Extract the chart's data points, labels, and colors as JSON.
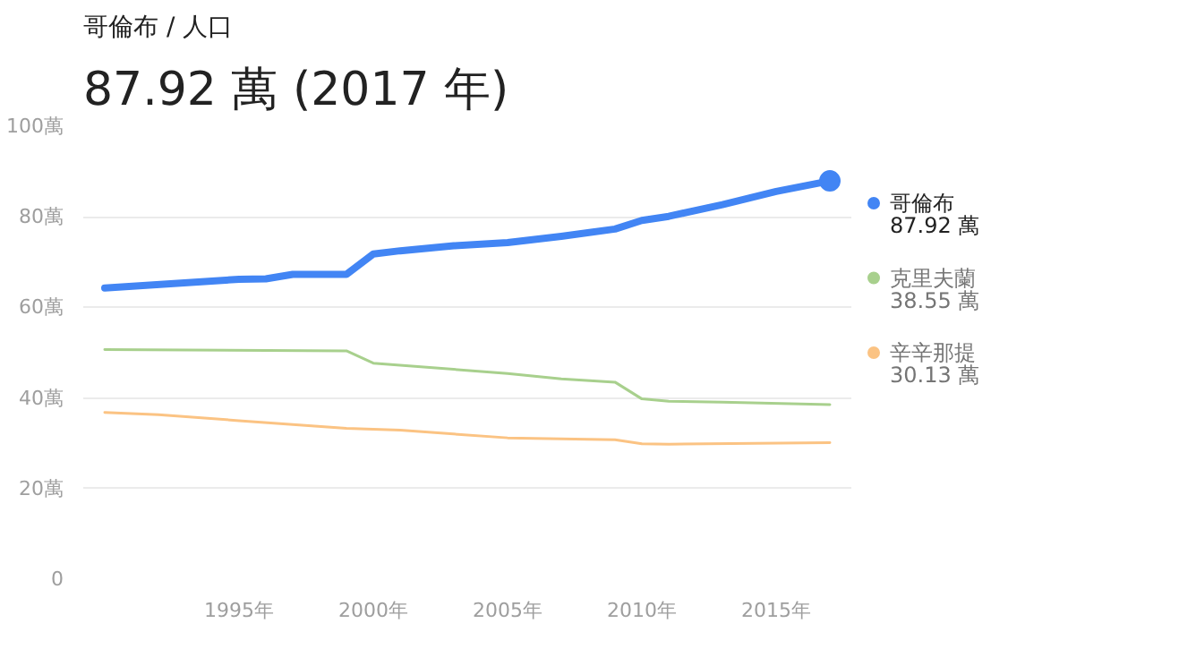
{
  "chart_data": {
    "type": "line",
    "title": "哥倫布 / 人口",
    "subtitle": "87.92 萬 (2017 年)",
    "xlim": [
      1989.2,
      2017.8
    ],
    "ylim": [
      0,
      100
    ],
    "xticks": [
      {
        "value": 1995,
        "label": "1995年"
      },
      {
        "value": 2000,
        "label": "2000年"
      },
      {
        "value": 2005,
        "label": "2005年"
      },
      {
        "value": 2010,
        "label": "2010年"
      },
      {
        "value": 2015,
        "label": "2015年"
      }
    ],
    "yticks": [
      0,
      {
        "value": 20,
        "label": "20萬"
      },
      {
        "value": 40,
        "label": "40萬"
      },
      {
        "value": 60,
        "label": "60萬"
      },
      {
        "value": 80,
        "label": "80萬"
      },
      {
        "value": 100,
        "label": "100萬"
      }
    ],
    "grid": "y",
    "legend": "right",
    "annotations": [
      "87.92 萬",
      "38.55 萬",
      "30.13 萬"
    ],
    "series": [
      {
        "name": "哥倫布",
        "color": "#4285f4",
        "x": [
          1990,
          1995,
          1996,
          1997,
          1999,
          2000,
          2001,
          2003,
          2005,
          2007,
          2009,
          2010,
          2011,
          2013,
          2015,
          2017
        ],
        "values": [
          64.3,
          66.2,
          66.3,
          67.3,
          67.3,
          71.8,
          72.5,
          73.6,
          74.3,
          75.7,
          77.3,
          79.2,
          80.1,
          82.7,
          85.6,
          87.92
        ]
      },
      {
        "name": "克里夫蘭",
        "color": "#a8d08d",
        "x": [
          1990,
          1999,
          2000,
          2005,
          2007,
          2009,
          2010,
          2011,
          2013,
          2017
        ],
        "values": [
          50.7,
          50.4,
          47.7,
          45.4,
          44.2,
          43.5,
          39.8,
          39.3,
          39.1,
          38.55
        ]
      },
      {
        "name": "辛辛那提",
        "color": "#fbc383",
        "x": [
          1990,
          1992,
          1995,
          1999,
          2001,
          2005,
          2009,
          2010,
          2011,
          2017
        ],
        "values": [
          36.8,
          36.3,
          35.0,
          33.3,
          32.9,
          31.2,
          30.8,
          29.9,
          29.8,
          30.13
        ]
      },
      {
        "type": "scatter",
        "color": "#4285f4",
        "x": [
          2017
        ],
        "values": [
          87.92
        ]
      }
    ]
  }
}
